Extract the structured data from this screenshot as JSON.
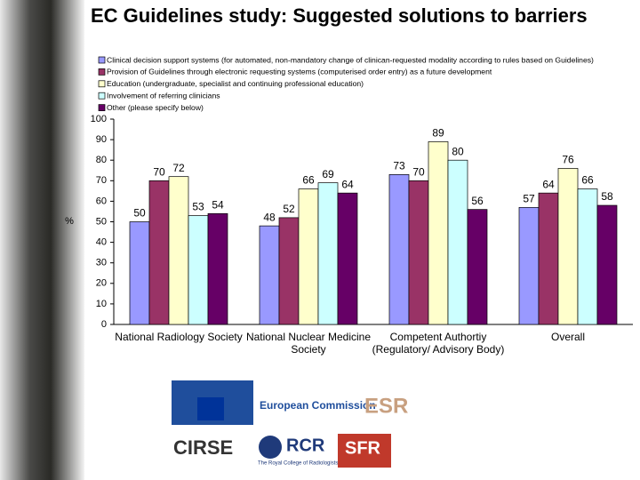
{
  "title": "EC Guidelines study: Suggested solutions to barriers",
  "chart_data": {
    "type": "bar",
    "y_label": "%",
    "categories": [
      "National Radiology Society",
      "National Nuclear Medicine Society",
      "Competent Authortiy (Regulatory/ Advisory Body)",
      "Overall"
    ],
    "series": [
      {
        "name": "Clinical decision support systems (for automated, non-mandatory change of clinican-requested modality according to rules based on Guidelines)",
        "color": "#9999ff",
        "values": [
          50,
          48,
          73,
          57
        ]
      },
      {
        "name": "Provision of Guidelines through electronic requesting systems (computerised order entry) as a future development",
        "color": "#993366",
        "values": [
          70,
          52,
          70,
          64
        ]
      },
      {
        "name": "Education (undergraduate, specialist and continuing professional education)",
        "color": "#ffffcc",
        "values": [
          72,
          66,
          89,
          76
        ]
      },
      {
        "name": "Involvement of referring clinicians",
        "color": "#ccffff",
        "values": [
          53,
          69,
          80,
          66
        ]
      },
      {
        "name": "Other (please specify below)",
        "color": "#660066",
        "values": [
          54,
          64,
          56,
          58
        ]
      }
    ],
    "ylim": [
      0,
      100
    ],
    "yticks": [
      0,
      10,
      20,
      30,
      40,
      50,
      60,
      70,
      80,
      90,
      100
    ],
    "grid": false,
    "legend": "top"
  },
  "logos": [
    "European Commission",
    "ESR",
    "CIRSE",
    "RCR",
    "The Royal College of Radiologists",
    "SFR"
  ]
}
